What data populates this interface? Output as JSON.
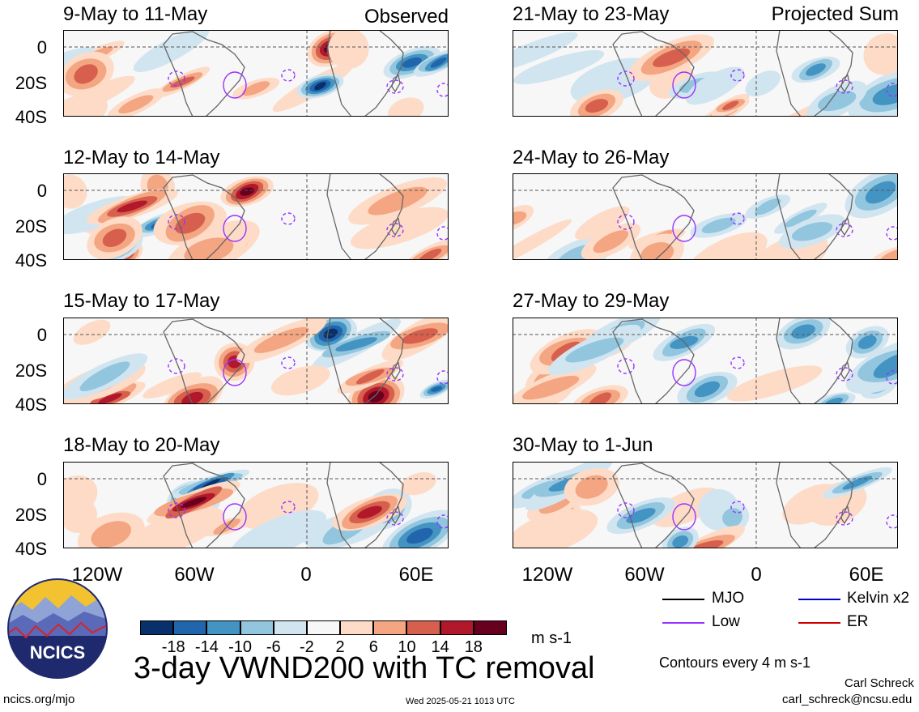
{
  "labels": {
    "observed": "Observed",
    "projected": "Projected Sum"
  },
  "panels": [
    {
      "title": "9-May to 11-May"
    },
    {
      "title": "12-May to 14-May"
    },
    {
      "title": "15-May to 17-May"
    },
    {
      "title": "18-May to 20-May"
    },
    {
      "title": "21-May to 23-May"
    },
    {
      "title": "24-May to 26-May"
    },
    {
      "title": "27-May to 29-May"
    },
    {
      "title": "30-May to 1-Jun"
    }
  ],
  "lat_ticks": [
    "0",
    "20S",
    "40S"
  ],
  "lon_ticks": [
    "120W",
    "60W",
    "0",
    "60E"
  ],
  "colorbar": {
    "colors": [
      "#08306b",
      "#2166ac",
      "#4393c3",
      "#92c5de",
      "#d1e5f0",
      "#f7f7f7",
      "#fddbc7",
      "#f4a582",
      "#d6604d",
      "#b2182b",
      "#67001f"
    ],
    "labels": [
      "-18",
      "-14",
      "-10",
      "-6",
      "-2",
      "2",
      "6",
      "10",
      "14",
      "18"
    ],
    "units": "m s-1"
  },
  "legend": {
    "mjo": "MJO",
    "mjo_color": "#000000",
    "kelvin": "Kelvin x2",
    "kelvin_color": "#0000cc",
    "low": "Low",
    "low_color": "#9933ff",
    "er": "ER",
    "er_color": "#cc0000"
  },
  "contours_note": "Contours every 4 m s-1",
  "main_title": "3-day VWND200 with TC removal",
  "logo_text": "NCICS",
  "footer": {
    "url": "ncics.org/mjo",
    "timestamp": "Wed 2025-05-21 1013 UTC",
    "author": "Carl Schreck",
    "email": "carl_schreck@ncsu.edu"
  }
}
